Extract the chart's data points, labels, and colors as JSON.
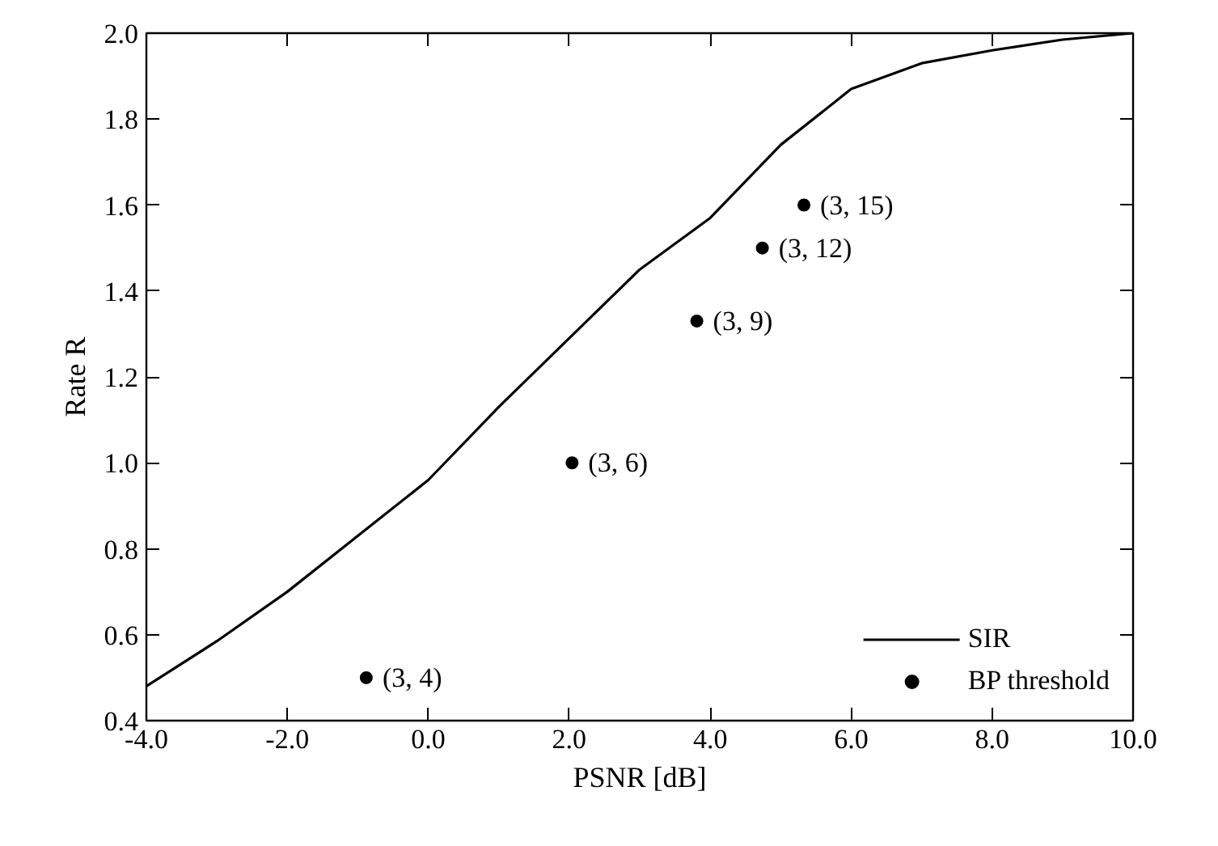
{
  "chart_data": {
    "type": "line",
    "xlabel": "PSNR [dB]",
    "ylabel": "Rate R",
    "xlim": [
      -4,
      10
    ],
    "ylim": [
      0.4,
      2.0
    ],
    "xticks": [
      {
        "value": -4,
        "label": "-4.0"
      },
      {
        "value": -2,
        "label": "-2.0"
      },
      {
        "value": 0,
        "label": "0.0"
      },
      {
        "value": 2,
        "label": "2.0"
      },
      {
        "value": 4,
        "label": "4.0"
      },
      {
        "value": 6,
        "label": "6.0"
      },
      {
        "value": 8,
        "label": "8.0"
      },
      {
        "value": 10,
        "label": "10.0"
      }
    ],
    "yticks": [
      0.4,
      0.6,
      0.8,
      {
        "value": 1,
        "label": "1.0"
      },
      1.2,
      1.4,
      1.6,
      1.8,
      {
        "value": 2,
        "label": "2.0"
      }
    ],
    "grid": false,
    "legend": "bottom right",
    "series": [
      {
        "name": "SIR",
        "color": "#000000",
        "marker": "none",
        "line_style": "solid",
        "x": [
          -4,
          -3,
          -2,
          -1,
          0,
          1,
          2,
          3,
          4,
          5,
          6,
          7,
          8,
          9,
          10
        ],
        "values": [
          0.48,
          0.585,
          0.7,
          0.83,
          0.96,
          1.13,
          1.29,
          1.45,
          1.57,
          1.74,
          1.87,
          1.93,
          1.96,
          1.985,
          2.0
        ]
      },
      {
        "name": "BP threshold",
        "type": "scatter",
        "color": "#000000",
        "marker": "circle",
        "x": [
          -0.88,
          2.04,
          3.81,
          4.74,
          5.33
        ],
        "values": [
          0.5,
          1.0,
          1.33,
          1.5,
          1.6
        ]
      }
    ],
    "annotations": [
      {
        "text": "(3, 4)",
        "x": -0.88,
        "y": 0.5
      },
      {
        "text": "(3, 6)",
        "x": 2.04,
        "y": 1.0
      },
      {
        "text": "(3, 9)",
        "x": 3.81,
        "y": 1.33
      },
      {
        "text": "(3, 12)",
        "x": 4.74,
        "y": 1.5
      },
      {
        "text": "(3, 15)",
        "x": 5.33,
        "y": 1.6
      }
    ]
  }
}
